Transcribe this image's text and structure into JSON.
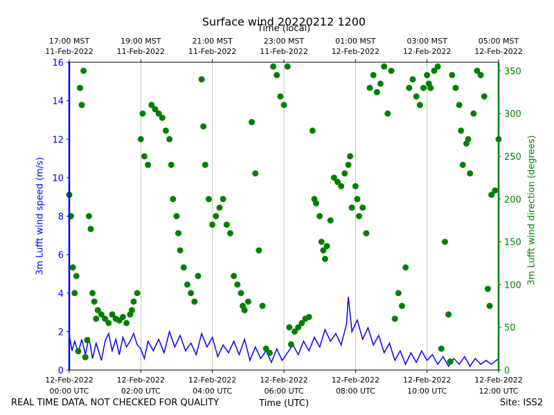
{
  "title": "Surface wind 20220212 1200",
  "top_axis_label": "Time (local)",
  "x_axis_label": "Time (UTC)",
  "footer_note": "REAL TIME DATA, NOT CHECKED FOR QUALITY",
  "site_label": "Site: ISS2",
  "colors": {
    "speed": "#0000ff",
    "direction": "#008000",
    "grid": "#b0b0b0"
  },
  "chart_data": {
    "type": "line+scatter",
    "title": "Surface wind 20220212 1200",
    "x_range_hours_utc": [
      0,
      12
    ],
    "bottom_ticks": [
      {
        "hour": 0,
        "line1": "12-Feb-2022",
        "line2": "00:00 UTC"
      },
      {
        "hour": 2,
        "line1": "12-Feb-2022",
        "line2": "02:00 UTC"
      },
      {
        "hour": 4,
        "line1": "12-Feb-2022",
        "line2": "04:00 UTC"
      },
      {
        "hour": 6,
        "line1": "12-Feb-2022",
        "line2": "06:00 UTC"
      },
      {
        "hour": 8,
        "line1": "12-Feb-2022",
        "line2": "08:00 UTC"
      },
      {
        "hour": 10,
        "line1": "12-Feb-2022",
        "line2": "10:00 UTC"
      },
      {
        "hour": 12,
        "line1": "12-Feb-2022",
        "line2": "12:00 UTC"
      }
    ],
    "top_ticks": [
      {
        "hour": 0,
        "line1": "17:00 MST",
        "line2": "11-Feb-2022"
      },
      {
        "hour": 2,
        "line1": "19:00 MST",
        "line2": "11-Feb-2022"
      },
      {
        "hour": 4,
        "line1": "21:00 MST",
        "line2": "11-Feb-2022"
      },
      {
        "hour": 6,
        "line1": "23:00 MST",
        "line2": "11-Feb-2022"
      },
      {
        "hour": 8,
        "line1": "01:00 MST",
        "line2": "12-Feb-2022"
      },
      {
        "hour": 10,
        "line1": "03:00 MST",
        "line2": "12-Feb-2022"
      },
      {
        "hour": 12,
        "line1": "05:00 MST",
        "line2": "12-Feb-2022"
      }
    ],
    "speed_axis": {
      "label": "3m Lufft wind speed (m/s)",
      "ylim": [
        0,
        16
      ],
      "ticks": [
        0,
        2,
        4,
        6,
        8,
        10,
        12,
        14,
        16
      ]
    },
    "direction_axis": {
      "label": "3m Lufft wind direction (degrees)",
      "ylim": [
        0,
        360
      ],
      "ticks": [
        0,
        50,
        100,
        150,
        200,
        250,
        300,
        350
      ]
    },
    "series": [
      {
        "name": "3m Lufft wind speed (m/s)",
        "kind": "line",
        "color": "#0000ff",
        "points": [
          [
            0.0,
            1.8
          ],
          [
            0.08,
            1.0
          ],
          [
            0.15,
            1.5
          ],
          [
            0.25,
            0.9
          ],
          [
            0.35,
            1.6
          ],
          [
            0.45,
            0.8
          ],
          [
            0.55,
            1.7
          ],
          [
            0.65,
            0.6
          ],
          [
            0.75,
            1.4
          ],
          [
            0.9,
            0.5
          ],
          [
            1.0,
            1.5
          ],
          [
            1.1,
            1.9
          ],
          [
            1.2,
            1.0
          ],
          [
            1.3,
            1.6
          ],
          [
            1.4,
            0.8
          ],
          [
            1.5,
            1.7
          ],
          [
            1.6,
            1.2
          ],
          [
            1.7,
            1.5
          ],
          [
            1.8,
            1.9
          ],
          [
            1.9,
            1.3
          ],
          [
            2.0,
            1.1
          ],
          [
            2.1,
            0.6
          ],
          [
            2.2,
            1.5
          ],
          [
            2.35,
            1.0
          ],
          [
            2.5,
            1.6
          ],
          [
            2.65,
            0.9
          ],
          [
            2.8,
            2.0
          ],
          [
            2.95,
            1.2
          ],
          [
            3.1,
            1.8
          ],
          [
            3.25,
            1.0
          ],
          [
            3.4,
            1.4
          ],
          [
            3.55,
            0.8
          ],
          [
            3.7,
            1.9
          ],
          [
            3.85,
            1.2
          ],
          [
            4.0,
            1.7
          ],
          [
            4.15,
            0.7
          ],
          [
            4.3,
            1.3
          ],
          [
            4.45,
            0.9
          ],
          [
            4.6,
            1.5
          ],
          [
            4.75,
            0.8
          ],
          [
            4.9,
            1.6
          ],
          [
            5.05,
            0.5
          ],
          [
            5.2,
            1.2
          ],
          [
            5.35,
            0.6
          ],
          [
            5.5,
            1.0
          ],
          [
            5.65,
            0.4
          ],
          [
            5.8,
            1.1
          ],
          [
            5.95,
            0.5
          ],
          [
            6.1,
            0.9
          ],
          [
            6.25,
            1.3
          ],
          [
            6.4,
            0.8
          ],
          [
            6.55,
            1.5
          ],
          [
            6.7,
            1.0
          ],
          [
            6.85,
            1.7
          ],
          [
            7.0,
            1.2
          ],
          [
            7.15,
            2.1
          ],
          [
            7.3,
            1.5
          ],
          [
            7.45,
            1.9
          ],
          [
            7.6,
            1.3
          ],
          [
            7.75,
            2.4
          ],
          [
            7.8,
            3.8
          ],
          [
            7.9,
            2.0
          ],
          [
            8.05,
            2.6
          ],
          [
            8.2,
            1.6
          ],
          [
            8.35,
            2.2
          ],
          [
            8.5,
            1.3
          ],
          [
            8.65,
            1.8
          ],
          [
            8.8,
            0.9
          ],
          [
            8.95,
            1.4
          ],
          [
            9.1,
            0.5
          ],
          [
            9.25,
            1.0
          ],
          [
            9.4,
            0.3
          ],
          [
            9.55,
            0.9
          ],
          [
            9.7,
            0.4
          ],
          [
            9.85,
            1.0
          ],
          [
            10.0,
            0.5
          ],
          [
            10.15,
            0.8
          ],
          [
            10.3,
            0.3
          ],
          [
            10.45,
            0.7
          ],
          [
            10.6,
            0.2
          ],
          [
            10.75,
            0.6
          ],
          [
            10.9,
            0.3
          ],
          [
            11.05,
            0.7
          ],
          [
            11.2,
            0.2
          ],
          [
            11.35,
            0.6
          ],
          [
            11.5,
            0.3
          ],
          [
            11.65,
            0.5
          ],
          [
            11.8,
            0.3
          ],
          [
            12.0,
            0.6
          ]
        ]
      },
      {
        "name": "3m Lufft wind direction (degrees)",
        "kind": "scatter",
        "color": "#008000",
        "points": [
          [
            0.0,
            205
          ],
          [
            0.05,
            180
          ],
          [
            0.1,
            120
          ],
          [
            0.15,
            90
          ],
          [
            0.2,
            110
          ],
          [
            0.25,
            22
          ],
          [
            0.3,
            330
          ],
          [
            0.35,
            310
          ],
          [
            0.4,
            350
          ],
          [
            0.45,
            15
          ],
          [
            0.5,
            35
          ],
          [
            0.55,
            180
          ],
          [
            0.6,
            165
          ],
          [
            0.65,
            90
          ],
          [
            0.7,
            80
          ],
          [
            0.75,
            60
          ],
          [
            0.8,
            70
          ],
          [
            0.9,
            65
          ],
          [
            1.0,
            60
          ],
          [
            1.1,
            55
          ],
          [
            1.2,
            65
          ],
          [
            1.3,
            60
          ],
          [
            1.4,
            58
          ],
          [
            1.5,
            62
          ],
          [
            1.6,
            55
          ],
          [
            1.7,
            65
          ],
          [
            1.75,
            70
          ],
          [
            1.8,
            80
          ],
          [
            1.9,
            90
          ],
          [
            2.0,
            270
          ],
          [
            2.05,
            300
          ],
          [
            2.1,
            250
          ],
          [
            2.2,
            240
          ],
          [
            2.3,
            310
          ],
          [
            2.4,
            305
          ],
          [
            2.5,
            300
          ],
          [
            2.6,
            295
          ],
          [
            2.7,
            280
          ],
          [
            2.8,
            270
          ],
          [
            2.85,
            240
          ],
          [
            2.9,
            200
          ],
          [
            3.0,
            180
          ],
          [
            3.05,
            160
          ],
          [
            3.1,
            140
          ],
          [
            3.2,
            120
          ],
          [
            3.3,
            100
          ],
          [
            3.4,
            90
          ],
          [
            3.5,
            80
          ],
          [
            3.6,
            110
          ],
          [
            3.7,
            340
          ],
          [
            3.75,
            285
          ],
          [
            3.8,
            240
          ],
          [
            3.9,
            200
          ],
          [
            4.0,
            170
          ],
          [
            4.1,
            180
          ],
          [
            4.2,
            190
          ],
          [
            4.3,
            200
          ],
          [
            4.4,
            170
          ],
          [
            4.5,
            160
          ],
          [
            4.6,
            110
          ],
          [
            4.7,
            100
          ],
          [
            4.8,
            90
          ],
          [
            4.85,
            75
          ],
          [
            4.9,
            70
          ],
          [
            5.0,
            80
          ],
          [
            5.1,
            290
          ],
          [
            5.2,
            230
          ],
          [
            5.3,
            140
          ],
          [
            5.4,
            75
          ],
          [
            5.5,
            25
          ],
          [
            5.6,
            20
          ],
          [
            5.7,
            355
          ],
          [
            5.8,
            345
          ],
          [
            5.9,
            320
          ],
          [
            6.0,
            310
          ],
          [
            6.1,
            355
          ],
          [
            6.15,
            50
          ],
          [
            6.2,
            30
          ],
          [
            6.3,
            45
          ],
          [
            6.4,
            50
          ],
          [
            6.5,
            55
          ],
          [
            6.6,
            60
          ],
          [
            6.7,
            62
          ],
          [
            6.8,
            280
          ],
          [
            6.85,
            200
          ],
          [
            6.9,
            195
          ],
          [
            7.0,
            180
          ],
          [
            7.05,
            150
          ],
          [
            7.1,
            140
          ],
          [
            7.15,
            130
          ],
          [
            7.2,
            145
          ],
          [
            7.3,
            175
          ],
          [
            7.4,
            225
          ],
          [
            7.5,
            220
          ],
          [
            7.6,
            215
          ],
          [
            7.7,
            230
          ],
          [
            7.8,
            240
          ],
          [
            7.85,
            250
          ],
          [
            7.9,
            190
          ],
          [
            8.0,
            215
          ],
          [
            8.05,
            200
          ],
          [
            8.1,
            180
          ],
          [
            8.2,
            190
          ],
          [
            8.3,
            160
          ],
          [
            8.4,
            330
          ],
          [
            8.5,
            345
          ],
          [
            8.6,
            325
          ],
          [
            8.7,
            335
          ],
          [
            8.8,
            355
          ],
          [
            8.9,
            300
          ],
          [
            9.0,
            350
          ],
          [
            9.1,
            60
          ],
          [
            9.2,
            90
          ],
          [
            9.3,
            75
          ],
          [
            9.4,
            120
          ],
          [
            9.5,
            330
          ],
          [
            9.6,
            340
          ],
          [
            9.7,
            320
          ],
          [
            9.8,
            310
          ],
          [
            9.9,
            330
          ],
          [
            10.0,
            345
          ],
          [
            10.05,
            335
          ],
          [
            10.1,
            330
          ],
          [
            10.2,
            350
          ],
          [
            10.3,
            355
          ],
          [
            10.4,
            25
          ],
          [
            10.5,
            150
          ],
          [
            10.6,
            65
          ],
          [
            10.65,
            10
          ],
          [
            10.7,
            345
          ],
          [
            10.8,
            330
          ],
          [
            10.9,
            310
          ],
          [
            10.95,
            280
          ],
          [
            11.0,
            240
          ],
          [
            11.1,
            265
          ],
          [
            11.15,
            270
          ],
          [
            11.2,
            230
          ],
          [
            11.3,
            300
          ],
          [
            11.4,
            350
          ],
          [
            11.5,
            345
          ],
          [
            11.6,
            320
          ],
          [
            11.7,
            95
          ],
          [
            11.75,
            75
          ],
          [
            11.8,
            205
          ],
          [
            11.9,
            210
          ],
          [
            12.0,
            270
          ]
        ]
      }
    ]
  }
}
